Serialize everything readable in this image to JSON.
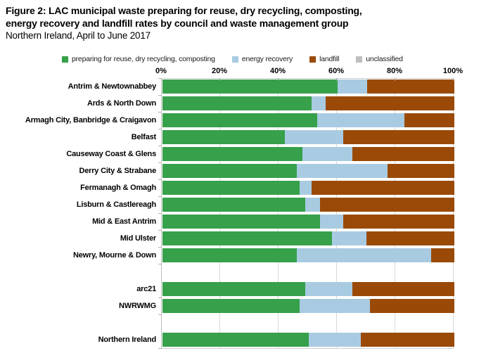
{
  "figure": {
    "title_line1": "Figure 2: LAC municipal waste preparing for reuse, dry recycling, composting,",
    "title_line2": "energy recovery and landfill rates by council and waste management group",
    "subtitle": "Northern Ireland, April to June 2017"
  },
  "chart_data": {
    "type": "bar",
    "orientation": "horizontal",
    "stacked": true,
    "unit": "percent",
    "xlim": [
      0,
      100
    ],
    "x_ticks": [
      "0%",
      "20%",
      "40%",
      "60%",
      "80%",
      "100%"
    ],
    "grid": "vertical",
    "legend_position": "top",
    "legend": [
      {
        "key": "recycling",
        "label": "preparing for reuse, dry recycling, composting",
        "color": "#36a04a"
      },
      {
        "key": "energy",
        "label": "energy recovery",
        "color": "#a9cbe2"
      },
      {
        "key": "landfill",
        "label": "landfill",
        "color": "#9a4a06"
      },
      {
        "key": "unclassified",
        "label": "unclassified",
        "color": "#bfbfbf"
      }
    ],
    "series_order": [
      "recycling",
      "energy",
      "landfill",
      "unclassified"
    ],
    "colors": {
      "recycling": "#36a04a",
      "energy": "#a9cbe2",
      "landfill": "#9a4a06",
      "unclassified": "#bfbfbf"
    },
    "rows": [
      {
        "label": "Antrim & Newtownabbey",
        "recycling": 60,
        "energy": 10,
        "landfill": 30,
        "unclassified": 0
      },
      {
        "label": "Ards & North Down",
        "recycling": 51,
        "energy": 5,
        "landfill": 44,
        "unclassified": 0
      },
      {
        "label": "Armagh City, Banbridge & Craigavon",
        "recycling": 53,
        "energy": 30,
        "landfill": 17,
        "unclassified": 0
      },
      {
        "label": "Belfast",
        "recycling": 42,
        "energy": 20,
        "landfill": 38,
        "unclassified": 0
      },
      {
        "label": "Causeway Coast & Glens",
        "recycling": 48,
        "energy": 17,
        "landfill": 35,
        "unclassified": 0
      },
      {
        "label": "Derry City & Strabane",
        "recycling": 46,
        "energy": 31,
        "landfill": 23,
        "unclassified": 0
      },
      {
        "label": "Fermanagh & Omagh",
        "recycling": 47,
        "energy": 4,
        "landfill": 49,
        "unclassified": 0
      },
      {
        "label": "Lisburn & Castlereagh",
        "recycling": 49,
        "energy": 5,
        "landfill": 46,
        "unclassified": 0
      },
      {
        "label": "Mid & East Antrim",
        "recycling": 54,
        "energy": 8,
        "landfill": 38,
        "unclassified": 0
      },
      {
        "label": "Mid Ulster",
        "recycling": 58,
        "energy": 12,
        "landfill": 30,
        "unclassified": 0
      },
      {
        "label": "Newry, Mourne & Down",
        "recycling": 46,
        "energy": 46,
        "landfill": 8,
        "unclassified": 0
      },
      {
        "label": "arc21",
        "recycling": 49,
        "energy": 16,
        "landfill": 35,
        "unclassified": 0,
        "gap_before": true
      },
      {
        "label": "NWRWMG",
        "recycling": 47,
        "energy": 24,
        "landfill": 29,
        "unclassified": 0
      },
      {
        "label": "Northern Ireland",
        "recycling": 50,
        "energy": 18,
        "landfill": 32,
        "unclassified": 0,
        "gap_before": true
      }
    ]
  }
}
